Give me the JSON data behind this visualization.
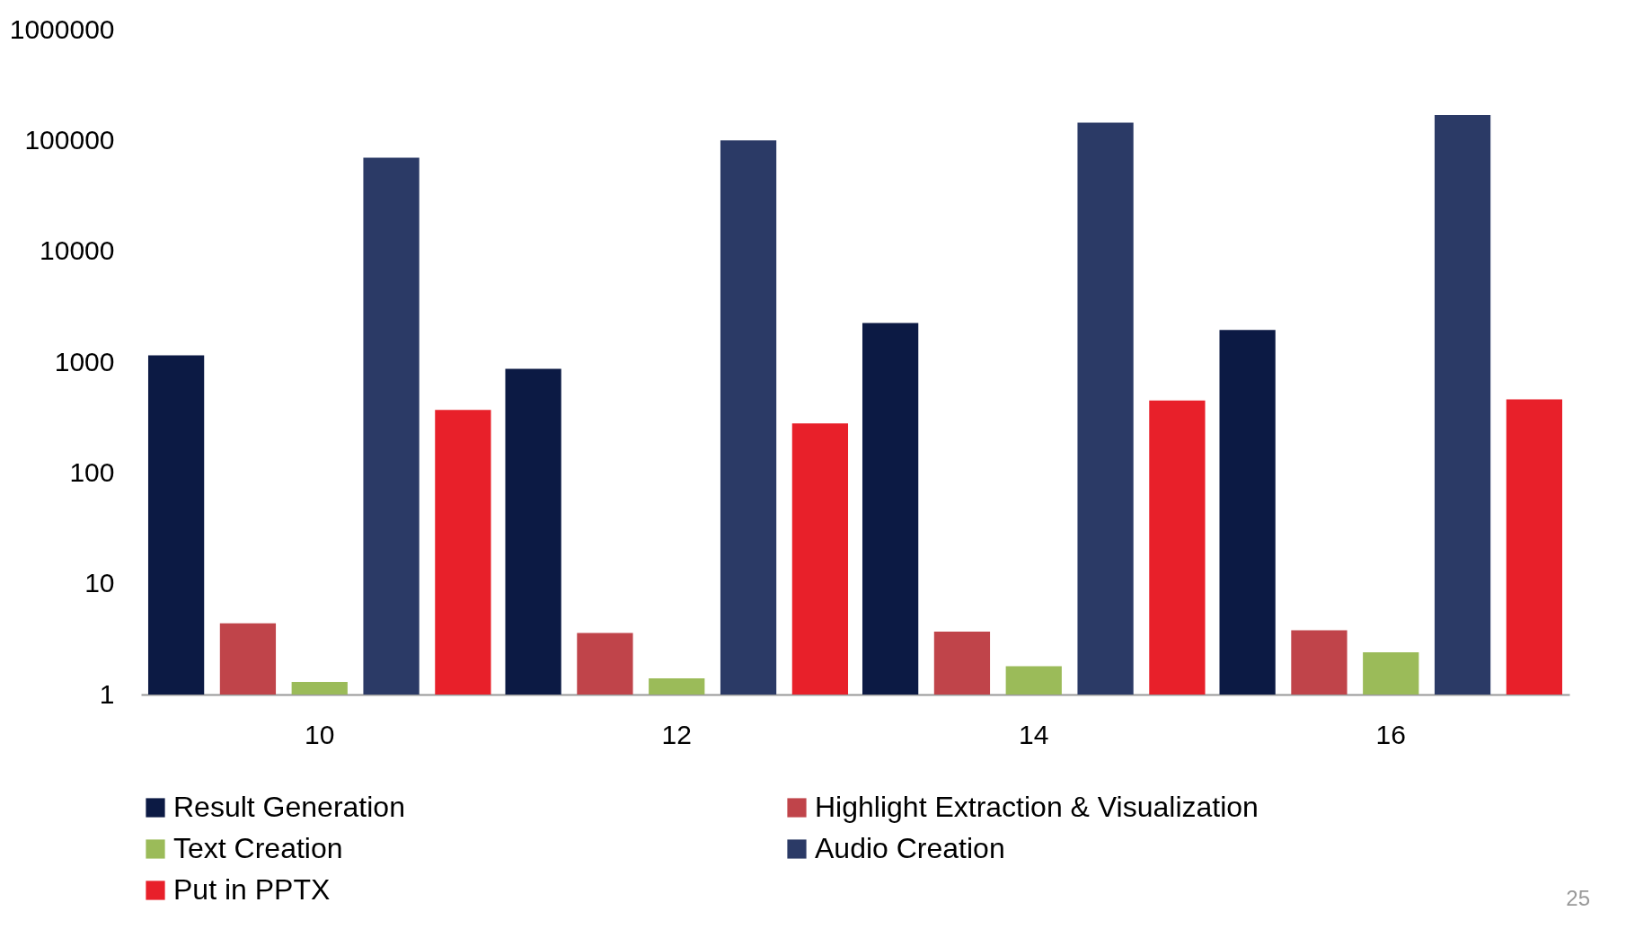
{
  "chart_data": {
    "type": "bar",
    "categories": [
      "10",
      "12",
      "14",
      "16"
    ],
    "series": [
      {
        "name": "Result Generation",
        "color": "#0c1a44",
        "values": [
          1150,
          870,
          2250,
          1950
        ]
      },
      {
        "name": "Highlight Extraction & Visualization",
        "color": "#c0444a",
        "values": [
          4.4,
          3.6,
          3.7,
          3.8
        ]
      },
      {
        "name": "Text Creation",
        "color": "#9bbb59",
        "values": [
          1.3,
          1.4,
          1.8,
          2.4
        ]
      },
      {
        "name": "Audio Creation",
        "color": "#2b3a66",
        "values": [
          70000,
          100000,
          145000,
          170000
        ]
      },
      {
        "name": "Put in PPTX",
        "color": "#e8202a",
        "values": [
          370,
          280,
          450,
          460
        ]
      }
    ],
    "log": true,
    "ylim": [
      1,
      1000000
    ],
    "yticks": [
      1,
      10,
      100,
      1000,
      10000,
      100000,
      1000000
    ],
    "grid": false,
    "legend": "bottom",
    "annotations": [
      "25"
    ]
  }
}
